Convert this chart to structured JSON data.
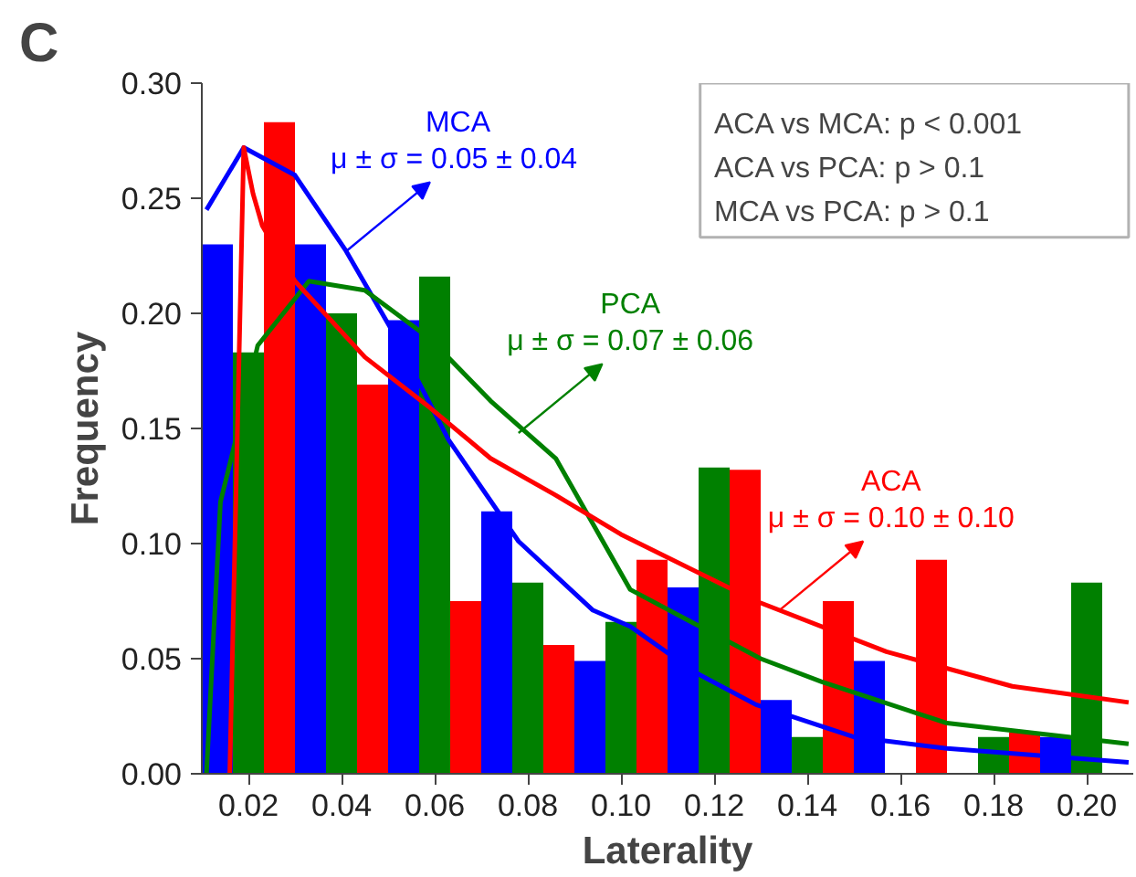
{
  "chart_data": {
    "type": "bar",
    "xlabel": "Laterality",
    "ylabel": "Frequency",
    "x": [
      0.02,
      0.04,
      0.06,
      0.08,
      0.1,
      0.12,
      0.14,
      0.16,
      0.18,
      0.2
    ],
    "xlim": [
      0.01,
      0.21
    ],
    "xticks": [
      0.02,
      0.04,
      0.06,
      0.08,
      {
        "value": 0.1,
        "label": "0.10"
      },
      0.12,
      0.14,
      0.16,
      0.18,
      {
        "value": 0.2,
        "label": "0.20"
      }
    ],
    "ylim": [
      0,
      0.3
    ],
    "yticks": [
      {
        "value": 0,
        "label": "0.00"
      },
      {
        "value": 0.05,
        "label": "0.05"
      },
      {
        "value": 0.1,
        "label": "0.10"
      },
      {
        "value": 0.15,
        "label": "0.15"
      },
      {
        "value": 0.2,
        "label": "0.20"
      },
      {
        "value": 0.25,
        "label": "0.25"
      },
      {
        "value": 0.3,
        "label": "0.30"
      }
    ],
    "series": [
      {
        "color": "#0000ff",
        "values": [
          0.23,
          0.23,
          0.197,
          0.114,
          0.049,
          0.081,
          0.032,
          0.049,
          0,
          0.016
        ]
      },
      {
        "color": "#008000",
        "values": [
          0.183,
          0.2,
          0.216,
          0.083,
          0.066,
          0.133,
          0.016,
          0,
          0.016,
          0.083
        ]
      },
      {
        "color": "#ff0000",
        "values": [
          0.283,
          0.169,
          0.075,
          0.056,
          0.093,
          0.132,
          0.075,
          0.093,
          0.018,
          0
        ]
      },
      {
        "type": "line",
        "name": "MCA",
        "color": "#0000ff",
        "x": [
          0.011,
          0.019,
          0.03,
          0.041,
          0.051,
          0.063,
          0.078,
          0.094,
          0.102,
          0.116,
          0.129,
          0.15,
          0.17,
          0.209
        ],
        "values": [
          0.245,
          0.272,
          0.26,
          0.227,
          0.192,
          0.145,
          0.101,
          0.071,
          0.064,
          0.044,
          0.03,
          0.016,
          0.011,
          0.005
        ]
      },
      {
        "type": "line",
        "name": "PCA",
        "color": "#008000",
        "x": [
          0.011,
          0.014,
          0.018,
          0.022,
          0.033,
          0.045,
          0.059,
          0.072,
          0.086,
          0.102,
          0.116,
          0.13,
          0.143,
          0.17,
          0.209
        ],
        "values": [
          0,
          0.118,
          0.151,
          0.186,
          0.214,
          0.21,
          0.189,
          0.162,
          0.137,
          0.08,
          0.065,
          0.05,
          0.04,
          0.022,
          0.013
        ]
      },
      {
        "type": "line",
        "name": "ACA",
        "color": "#ff0000",
        "x": [
          0.016,
          0.019,
          0.021,
          0.023,
          0.03,
          0.045,
          0.059,
          0.072,
          0.086,
          0.1,
          0.129,
          0.157,
          0.184,
          0.209
        ],
        "values": [
          0,
          0.272,
          0.252,
          0.238,
          0.214,
          0.181,
          0.159,
          0.137,
          0.121,
          0.104,
          0.075,
          0.053,
          0.038,
          0.031
        ]
      }
    ],
    "annotations": [
      "C",
      "ACA vs MCA: p < 0.001",
      "ACA vs PCA: p > 0.1",
      "MCA vs PCA: p > 0.1",
      {
        "text": "μ ± σ =  0.05 ± 0.04",
        "x": 0.041,
        "y": 0.227
      },
      {
        "text": "μ ± σ = 0.07 ± 0.06",
        "x": 0.078,
        "y": 0.148
      },
      {
        "text": "μ ± σ = 0.10 ± 0.10",
        "x": 0.134,
        "y": 0.071
      }
    ]
  }
}
